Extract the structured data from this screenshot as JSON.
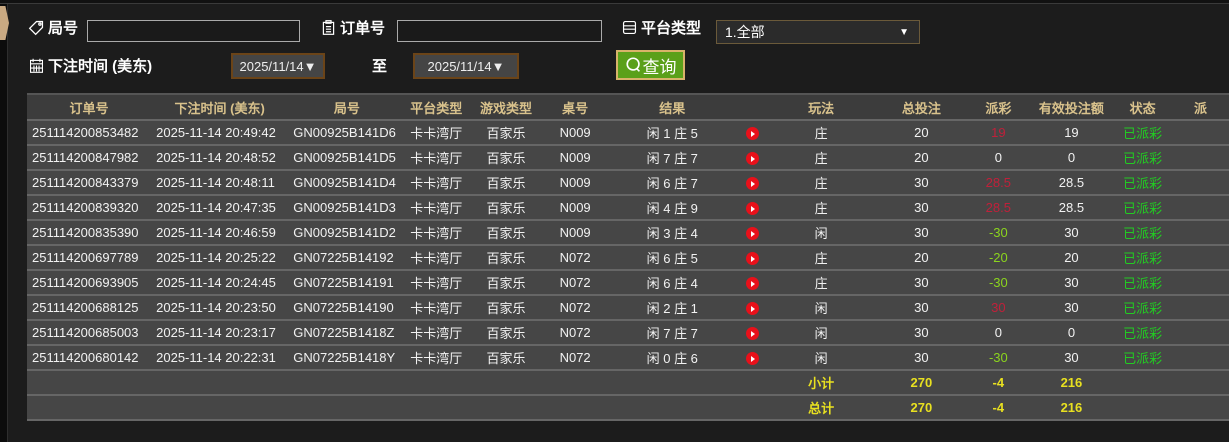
{
  "filters": {
    "round_label": "局号",
    "round_value": "",
    "order_label": "订单号",
    "order_value": "",
    "platform_label": "平台类型",
    "platform_value": "1.全部",
    "time_label": "下注时间 (美东)",
    "date_from": "2025/11/14▼",
    "to_label": "至",
    "date_to": "2025/11/14▼",
    "query_label": "查询"
  },
  "table": {
    "headers": [
      "订单号",
      "下注时间 (美东)",
      "局号",
      "平台类型",
      "游戏类型",
      "桌号",
      "结果",
      "",
      "玩法",
      "总投注",
      "派彩",
      "有效投注额",
      "状态",
      "派"
    ],
    "rows": [
      {
        "order": "251114200853482",
        "time": "2025-11-14 20:49:42",
        "round": "GN00925B141D6",
        "platform": "卡卡湾厅",
        "game": "百家乐",
        "table": "N009",
        "result": "闲 1 庄 5",
        "play": "庄",
        "bet": "20",
        "payout": "19",
        "payout_color": "red",
        "valid": "19",
        "status": "已派彩"
      },
      {
        "order": "251114200847982",
        "time": "2025-11-14 20:48:52",
        "round": "GN00925B141D5",
        "platform": "卡卡湾厅",
        "game": "百家乐",
        "table": "N009",
        "result": "闲 7 庄 7",
        "play": "庄",
        "bet": "20",
        "payout": "0",
        "payout_color": "white",
        "valid": "0",
        "status": "已派彩"
      },
      {
        "order": "251114200843379",
        "time": "2025-11-14 20:48:11",
        "round": "GN00925B141D4",
        "platform": "卡卡湾厅",
        "game": "百家乐",
        "table": "N009",
        "result": "闲 6 庄 7",
        "play": "庄",
        "bet": "30",
        "payout": "28.5",
        "payout_color": "red",
        "valid": "28.5",
        "status": "已派彩"
      },
      {
        "order": "251114200839320",
        "time": "2025-11-14 20:47:35",
        "round": "GN00925B141D3",
        "platform": "卡卡湾厅",
        "game": "百家乐",
        "table": "N009",
        "result": "闲 4 庄 9",
        "play": "庄",
        "bet": "30",
        "payout": "28.5",
        "payout_color": "red",
        "valid": "28.5",
        "status": "已派彩"
      },
      {
        "order": "251114200835390",
        "time": "2025-11-14 20:46:59",
        "round": "GN00925B141D2",
        "platform": "卡卡湾厅",
        "game": "百家乐",
        "table": "N009",
        "result": "闲 3 庄 4",
        "play": "闲",
        "bet": "30",
        "payout": "-30",
        "payout_color": "green",
        "valid": "30",
        "status": "已派彩"
      },
      {
        "order": "251114200697789",
        "time": "2025-11-14 20:25:22",
        "round": "GN07225B14192",
        "platform": "卡卡湾厅",
        "game": "百家乐",
        "table": "N072",
        "result": "闲 6 庄 5",
        "play": "庄",
        "bet": "20",
        "payout": "-20",
        "payout_color": "green",
        "valid": "20",
        "status": "已派彩"
      },
      {
        "order": "251114200693905",
        "time": "2025-11-14 20:24:45",
        "round": "GN07225B14191",
        "platform": "卡卡湾厅",
        "game": "百家乐",
        "table": "N072",
        "result": "闲 6 庄 4",
        "play": "庄",
        "bet": "30",
        "payout": "-30",
        "payout_color": "green",
        "valid": "30",
        "status": "已派彩"
      },
      {
        "order": "251114200688125",
        "time": "2025-11-14 20:23:50",
        "round": "GN07225B14190",
        "platform": "卡卡湾厅",
        "game": "百家乐",
        "table": "N072",
        "result": "闲 2 庄 1",
        "play": "闲",
        "bet": "30",
        "payout": "30",
        "payout_color": "red",
        "valid": "30",
        "status": "已派彩"
      },
      {
        "order": "251114200685003",
        "time": "2025-11-14 20:23:17",
        "round": "GN07225B1418Z",
        "platform": "卡卡湾厅",
        "game": "百家乐",
        "table": "N072",
        "result": "闲 7 庄 7",
        "play": "闲",
        "bet": "30",
        "payout": "0",
        "payout_color": "white",
        "valid": "0",
        "status": "已派彩"
      },
      {
        "order": "251114200680142",
        "time": "2025-11-14 20:22:31",
        "round": "GN07225B1418Y",
        "platform": "卡卡湾厅",
        "game": "百家乐",
        "table": "N072",
        "result": "闲 0 庄 6",
        "play": "闲",
        "bet": "30",
        "payout": "-30",
        "payout_color": "green",
        "valid": "30",
        "status": "已派彩"
      }
    ],
    "subtotal": {
      "label": "小计",
      "bet": "270",
      "payout": "-4",
      "valid": "216"
    },
    "total": {
      "label": "总计",
      "bet": "270",
      "payout": "-4",
      "valid": "216"
    }
  },
  "colors": {
    "header_text": "#d9c28c",
    "payout_red": "#c0203a",
    "payout_green": "#8bd41e",
    "status_green": "#22cc22",
    "total_yellow": "#e8e020",
    "query_button": "#5aa01a"
  }
}
